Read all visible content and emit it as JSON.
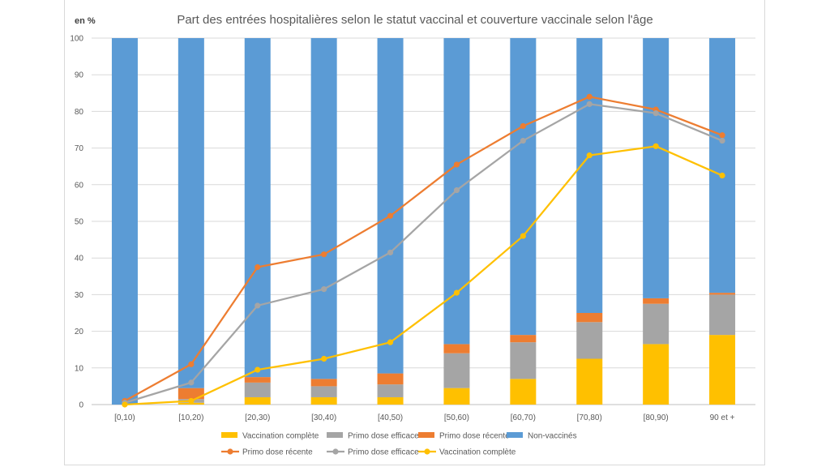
{
  "chart_data": {
    "type": "bar",
    "title": "Part des entrées hospitalières selon le statut vaccinal et couverture vaccinale selon l'âge",
    "ylabel": "en %",
    "ylim": [
      0,
      100
    ],
    "yticks": [
      0,
      10,
      20,
      30,
      40,
      50,
      60,
      70,
      80,
      90,
      100
    ],
    "grid": true,
    "legend_position": "bottom",
    "categories": [
      "[0,10)",
      "[10,20)",
      "[20,30)",
      "[30,40)",
      "[40,50)",
      "[50,60)",
      "[60,70)",
      "[70,80)",
      "[80,90)",
      "90 et +"
    ],
    "bar_series": [
      {
        "name": "Vaccination complète",
        "color": "#ffc000",
        "values": [
          0.0,
          0.5,
          2.0,
          2.0,
          2.0,
          4.5,
          7.0,
          12.5,
          16.5,
          19.0
        ]
      },
      {
        "name": "Primo dose efficace",
        "color": "#a5a5a5",
        "values": [
          0.0,
          1.0,
          4.0,
          3.0,
          3.5,
          9.5,
          10.0,
          10.0,
          11.0,
          11.0
        ]
      },
      {
        "name": "Primo dose récente",
        "color": "#ed7d31",
        "values": [
          0.0,
          3.0,
          1.5,
          2.0,
          3.0,
          2.5,
          2.0,
          2.5,
          1.5,
          0.5
        ]
      },
      {
        "name": "Non-vaccinés",
        "color": "#5b9bd5",
        "values": [
          100.0,
          95.5,
          92.5,
          93.0,
          91.5,
          83.5,
          81.0,
          75.0,
          71.0,
          69.5
        ]
      }
    ],
    "line_series": [
      {
        "name": "Primo dose récente",
        "color": "#ed7d31",
        "values": [
          1.0,
          11.0,
          37.5,
          41.0,
          51.5,
          65.5,
          76.0,
          84.0,
          80.5,
          73.5
        ]
      },
      {
        "name": "Primo dose efficace",
        "color": "#a5a5a5",
        "values": [
          0.5,
          6.0,
          27.0,
          31.5,
          41.5,
          58.5,
          72.0,
          82.0,
          79.5,
          72.0
        ]
      },
      {
        "name": "Vaccination complète",
        "color": "#ffc000",
        "values": [
          0.0,
          1.0,
          9.5,
          12.5,
          17.0,
          30.5,
          46.0,
          68.0,
          70.5,
          62.5
        ]
      }
    ],
    "legend": [
      {
        "kind": "bar",
        "name": "Vaccination complète",
        "color": "#ffc000"
      },
      {
        "kind": "bar",
        "name": "Primo dose efficace",
        "color": "#a5a5a5"
      },
      {
        "kind": "bar",
        "name": "Primo dose récente",
        "color": "#ed7d31"
      },
      {
        "kind": "bar",
        "name": "Non-vaccinés",
        "color": "#5b9bd5"
      },
      {
        "kind": "line",
        "name": "Primo dose récente",
        "color": "#ed7d31"
      },
      {
        "kind": "line",
        "name": "Primo dose efficace",
        "color": "#a5a5a5"
      },
      {
        "kind": "line",
        "name": "Vaccination complète",
        "color": "#ffc000"
      }
    ]
  }
}
